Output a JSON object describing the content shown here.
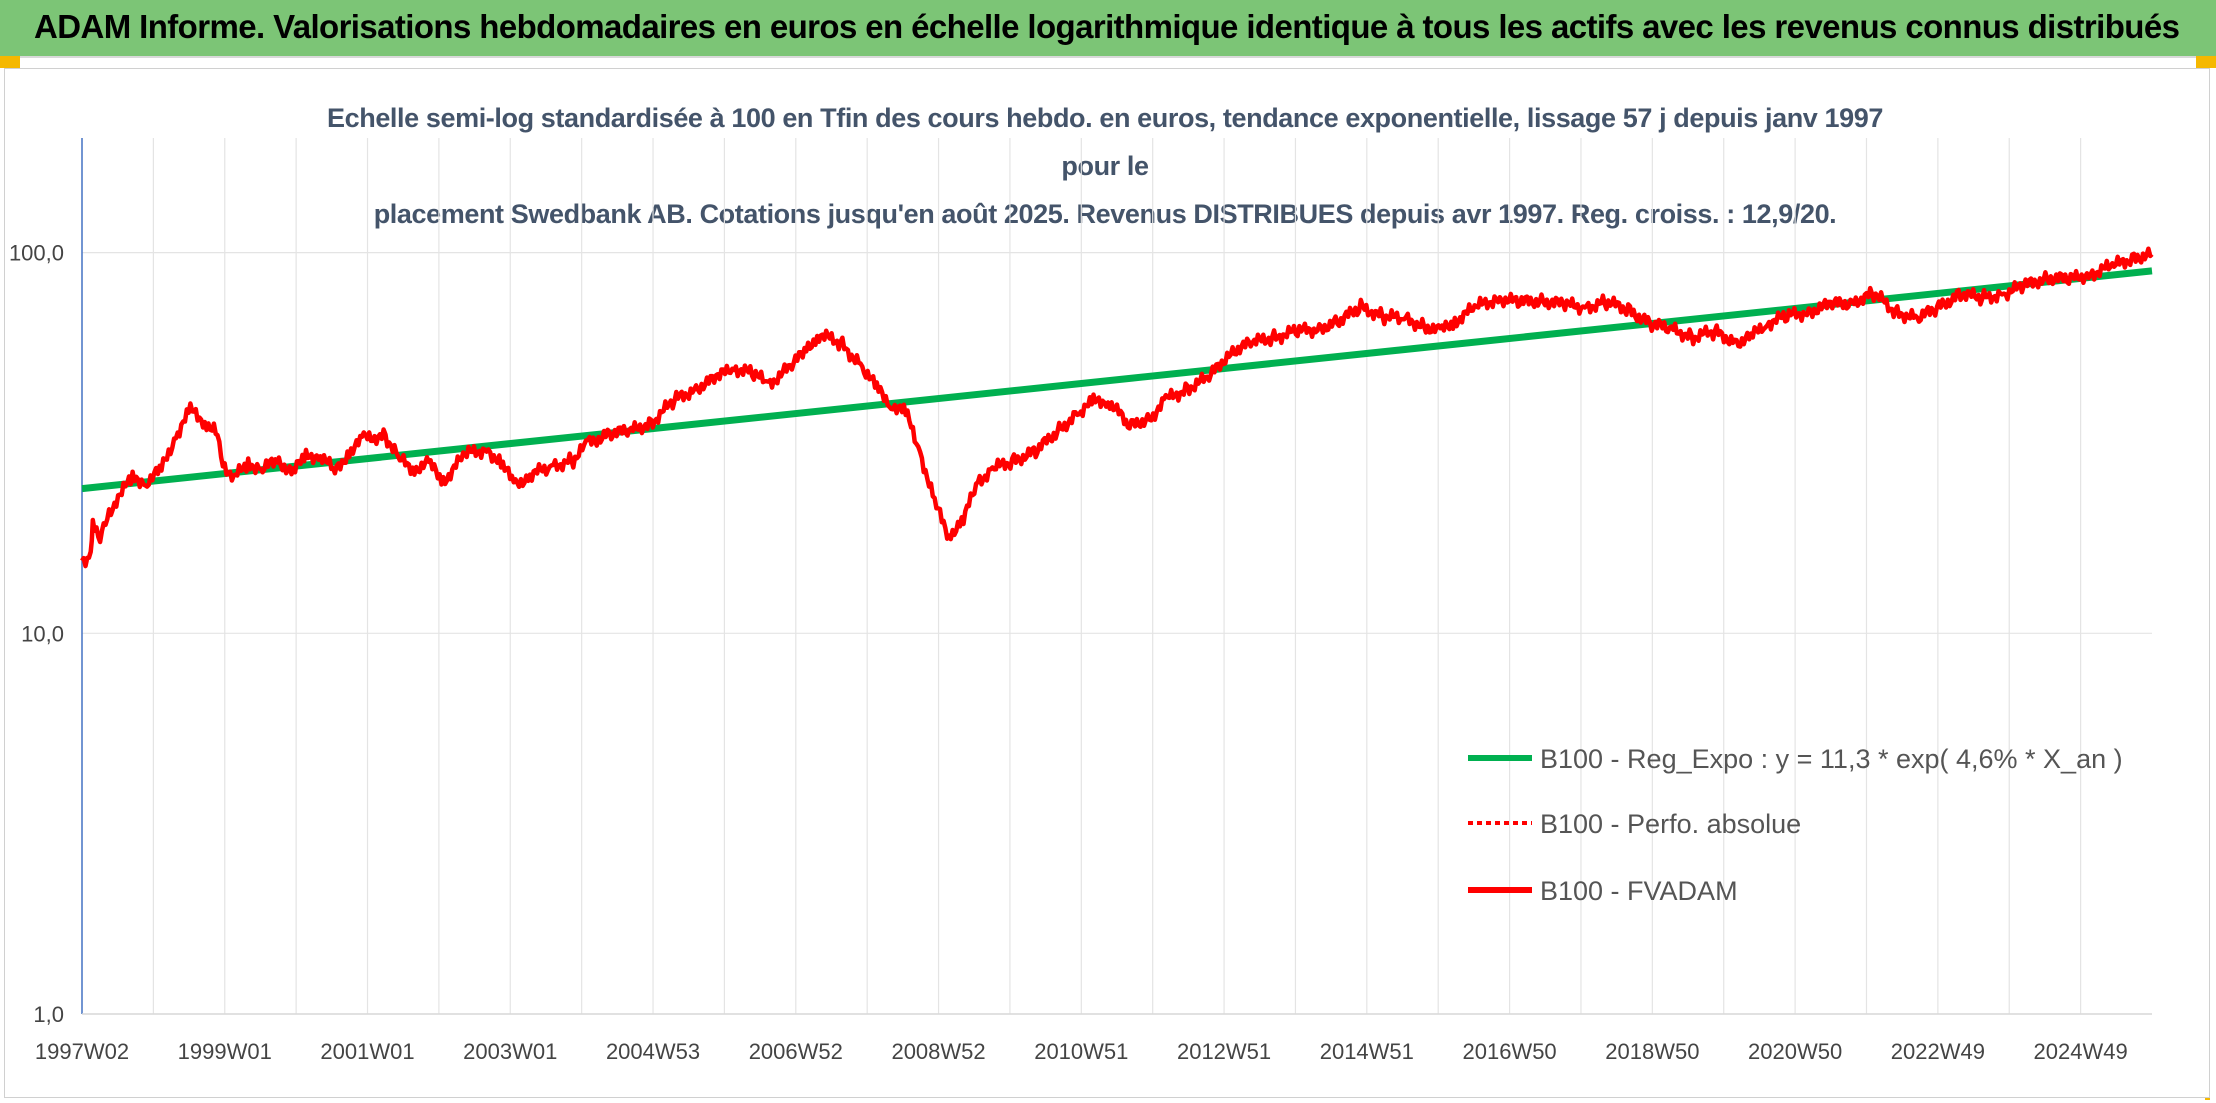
{
  "header": {
    "title": "ADAM Informe. Valorisations hebdomadaires en euros en échelle logarithmique identique à tous les actifs avec les revenus connus distribués"
  },
  "chart_data": {
    "type": "line",
    "title_line1": "Echelle semi-log standardisée à 100 en Tfin des cours hebdo. en euros, tendance exponentielle, lissage 57 j depuis janv 1997 pour le",
    "title_line2": "placement Swedbank AB. Cotations jusqu'en août 2025. Revenus DISTRIBUES depuis avr 1997. Reg. croiss. : 12,9/20.",
    "y_scale": "log",
    "ylim": [
      1,
      200
    ],
    "y_ticks": [
      1,
      10,
      100
    ],
    "y_tick_labels": [
      "1,0",
      "10,0",
      "100,0"
    ],
    "xlim": [
      1997.0,
      2025.65
    ],
    "x_tick_labels": [
      "1997W02",
      "1999W01",
      "2001W01",
      "2003W01",
      "2004W53",
      "2006W52",
      "2008W52",
      "2010W51",
      "2012W51",
      "2014W51",
      "2016W50",
      "2018W50",
      "2020W50",
      "2022W49",
      "2024W49"
    ],
    "grid": true,
    "legend_position": "right-middle",
    "series": [
      {
        "name": "B100 - Reg_Expo : y = 11,3 * exp( 4,6% *  X_an )",
        "color": "#00b050",
        "style": "solid",
        "x": [
          1997.0,
          2025.65
        ],
        "values": [
          24.0,
          89.5
        ]
      },
      {
        "name": "B100 - Perfo. absolue",
        "color": "#ff0000",
        "style": "dotted",
        "x": [],
        "values": []
      },
      {
        "name": "B100 - FVADAM",
        "color": "#ff0000",
        "style": "solid",
        "x": [
          1997.0,
          1997.12,
          1997.15,
          1997.25,
          1997.35,
          1997.5,
          1997.7,
          1997.9,
          1998.1,
          1998.3,
          1998.5,
          1998.7,
          1998.85,
          1998.95,
          1999.1,
          1999.3,
          1999.5,
          1999.7,
          1999.9,
          2000.1,
          2000.3,
          2000.5,
          2000.7,
          2000.9,
          2001.2,
          2001.4,
          2001.6,
          2001.8,
          2002.0,
          2002.3,
          2002.6,
          2002.8,
          2003.0,
          2003.2,
          2003.5,
          2003.8,
          2004.0,
          2004.3,
          2004.6,
          2004.9,
          2005.2,
          2005.5,
          2005.8,
          2006.0,
          2006.3,
          2006.5,
          2006.8,
          2007.0,
          2007.2,
          2007.5,
          2007.8,
          2008.0,
          2008.2,
          2008.4,
          2008.6,
          2008.8,
          2009.0,
          2009.2,
          2009.4,
          2009.6,
          2009.9,
          2010.2,
          2010.5,
          2010.8,
          2011.0,
          2011.2,
          2011.5,
          2011.8,
          2012.0,
          2012.3,
          2012.6,
          2012.9,
          2013.2,
          2013.5,
          2013.8,
          2014.1,
          2014.4,
          2014.7,
          2015.0,
          2015.3,
          2015.6,
          2015.8,
          2016.0,
          2016.3,
          2016.6,
          2016.9,
          2017.2,
          2017.5,
          2017.8,
          2018.1,
          2018.4,
          2018.7,
          2019.0,
          2019.3,
          2019.6,
          2019.9,
          2020.1,
          2020.3,
          2020.6,
          2020.9,
          2021.2,
          2021.5,
          2021.8,
          2022.1,
          2022.4,
          2022.7,
          2023.0,
          2023.3,
          2023.6,
          2023.9,
          2024.2,
          2024.5,
          2024.8,
          2025.1,
          2025.4,
          2025.65
        ],
        "values": [
          15.5,
          16.0,
          19.5,
          18.0,
          20.0,
          23.0,
          25.5,
          25.0,
          27.0,
          33.0,
          38.5,
          36.0,
          34.0,
          28.0,
          25.5,
          28.0,
          27.0,
          28.5,
          26.5,
          29.0,
          29.5,
          26.5,
          30.0,
          32.5,
          33.0,
          28.5,
          27.0,
          28.0,
          25.0,
          29.5,
          30.5,
          28.0,
          24.5,
          26.0,
          27.5,
          28.5,
          31.5,
          33.5,
          34.0,
          36.0,
          41.0,
          44.0,
          47.0,
          50.0,
          48.0,
          45.0,
          50.0,
          55.0,
          61.0,
          58.0,
          50.0,
          44.0,
          40.0,
          38.0,
          30.0,
          22.0,
          18.0,
          20.0,
          25.0,
          27.0,
          28.5,
          30.0,
          34.0,
          38.0,
          40.5,
          41.0,
          35.0,
          37.0,
          41.0,
          44.0,
          47.0,
          55.0,
          58.0,
          60.0,
          62.0,
          63.0,
          66.0,
          72.0,
          68.0,
          67.0,
          64.0,
          62.0,
          66.0,
          72.0,
          76.0,
          74.0,
          75.0,
          73.0,
          72.0,
          74.0,
          71.0,
          65.0,
          63.0,
          60.0,
          62.0,
          58.0,
          60.0,
          65.0,
          68.0,
          70.0,
          73.0,
          74.0,
          78.0,
          70.0,
          67.0,
          72.0,
          78.0,
          76.0,
          78.0,
          82.0,
          86.0,
          85.0,
          88.0,
          92.0,
          97.0,
          99.0
        ]
      }
    ]
  }
}
